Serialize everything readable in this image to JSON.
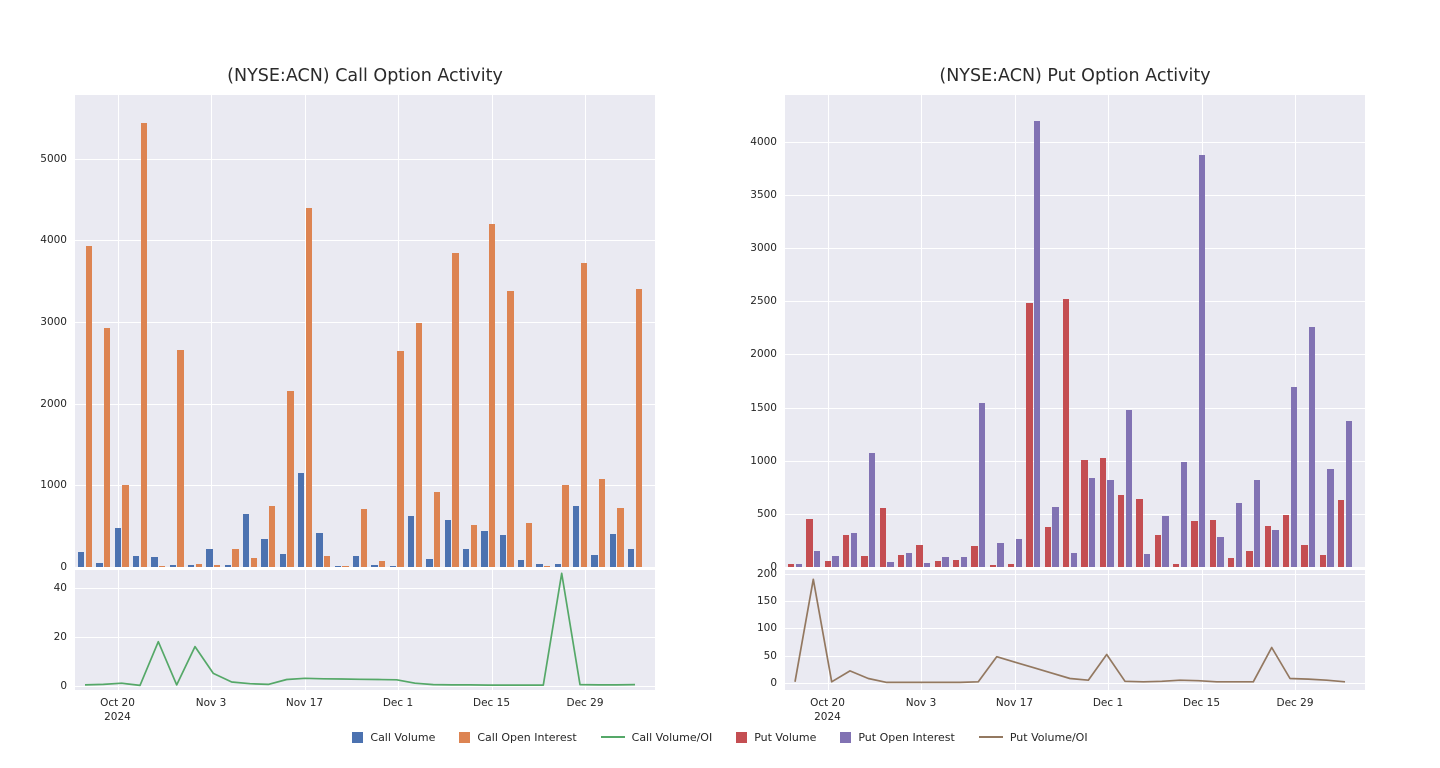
{
  "figure": {
    "background": "#ffffff",
    "plot_background": "#eaeaf2",
    "grid_color": "#ffffff",
    "text_color": "#262626"
  },
  "chart_data": [
    {
      "type": "bar+line",
      "title": "(NYSE:ACN) Call Option Activity",
      "x_tick_labels": [
        "Oct 20",
        "Nov 3",
        "Nov 17",
        "Dec 1",
        "Dec 15",
        "Dec 29"
      ],
      "x_year_label": "2024",
      "main_y_ticks": [
        0,
        1000,
        2000,
        3000,
        4000,
        5000
      ],
      "main_ylim": [
        0,
        5780
      ],
      "sub_y_ticks": [
        0,
        20,
        40
      ],
      "sub_ylim": [
        -1.8,
        47.4
      ],
      "grid": true,
      "legend_position": "bottom",
      "series": [
        {
          "name": "Call Volume",
          "type": "bar",
          "axis": "main",
          "color": "#4c72b0",
          "values": [
            180,
            50,
            480,
            130,
            120,
            20,
            25,
            225,
            30,
            655,
            345,
            165,
            1155,
            415,
            10,
            130,
            20,
            10,
            620,
            100,
            570,
            220,
            440,
            390,
            80,
            40,
            40,
            750,
            150,
            400,
            220
          ]
        },
        {
          "name": "Call Open Interest",
          "type": "bar",
          "axis": "main",
          "color": "#dd8452",
          "values": [
            3930,
            2930,
            1010,
            5440,
            10,
            2660,
            35,
            20,
            225,
            115,
            745,
            2150,
            4400,
            140,
            10,
            715,
            75,
            2640,
            2990,
            915,
            3845,
            520,
            4200,
            3380,
            540,
            10,
            1000,
            3720,
            1080,
            720,
            3400
          ]
        },
        {
          "name": "Call Volume/OI",
          "type": "line",
          "axis": "sub",
          "color": "#55a868",
          "values": [
            0.3,
            0.5,
            1.0,
            0.1,
            18,
            0.3,
            16,
            5,
            1.5,
            0.8,
            0.5,
            2.5,
            3.0,
            2.8,
            2.7,
            2.6,
            2.5,
            2.4,
            1.0,
            0.4,
            0.3,
            0.3,
            0.2,
            0.2,
            0.2,
            0.2,
            46,
            0.4,
            0.3,
            0.3,
            0.4
          ]
        }
      ]
    },
    {
      "type": "bar+line",
      "title": "(NYSE:ACN) Put Option Activity",
      "x_tick_labels": [
        "Oct 20",
        "Nov 3",
        "Nov 17",
        "Dec 1",
        "Dec 15",
        "Dec 29"
      ],
      "x_year_label": "2024",
      "main_y_ticks": [
        0,
        500,
        1000,
        1500,
        2000,
        2500,
        3000,
        3500,
        4000
      ],
      "main_ylim": [
        0,
        4440
      ],
      "sub_y_ticks": [
        0,
        50,
        100,
        150,
        200
      ],
      "sub_ylim": [
        -13,
        207
      ],
      "grid": true,
      "legend_position": "bottom",
      "series": [
        {
          "name": "Put Volume",
          "type": "bar",
          "axis": "main",
          "color": "#c44e52",
          "values": [
            25,
            450,
            60,
            300,
            100,
            555,
            110,
            210,
            60,
            65,
            200,
            15,
            30,
            2480,
            380,
            2520,
            1010,
            1030,
            680,
            640,
            300,
            30,
            430,
            440,
            80,
            150,
            390,
            490,
            210,
            110,
            630
          ]
        },
        {
          "name": "Put Open Interest",
          "type": "bar",
          "axis": "main",
          "color": "#8172b3",
          "values": [
            30,
            150,
            100,
            320,
            1070,
            50,
            130,
            40,
            90,
            95,
            1540,
            230,
            260,
            4200,
            560,
            130,
            840,
            820,
            1480,
            120,
            480,
            985,
            3880,
            280,
            600,
            820,
            350,
            1690,
            2260,
            920,
            1370
          ]
        },
        {
          "name": "Put Volume/OI",
          "type": "line",
          "axis": "sub",
          "color": "#937860",
          "values": [
            2,
            190,
            2,
            22,
            8,
            1,
            1,
            1,
            1,
            1,
            2,
            48,
            38,
            28,
            18,
            8,
            5,
            52,
            3,
            2,
            3,
            5,
            4,
            2,
            2,
            2,
            65,
            8,
            7,
            5,
            2
          ]
        }
      ]
    }
  ],
  "legend": {
    "items": [
      {
        "label": "Call Volume",
        "color": "#4c72b0",
        "marker": "square"
      },
      {
        "label": "Call Open Interest",
        "color": "#dd8452",
        "marker": "square"
      },
      {
        "label": "Call Volume/OI",
        "color": "#55a868",
        "marker": "line"
      },
      {
        "label": "Put Volume",
        "color": "#c44e52",
        "marker": "square"
      },
      {
        "label": "Put Open Interest",
        "color": "#8172b3",
        "marker": "square"
      },
      {
        "label": "Put Volume/OI",
        "color": "#937860",
        "marker": "line"
      }
    ]
  }
}
